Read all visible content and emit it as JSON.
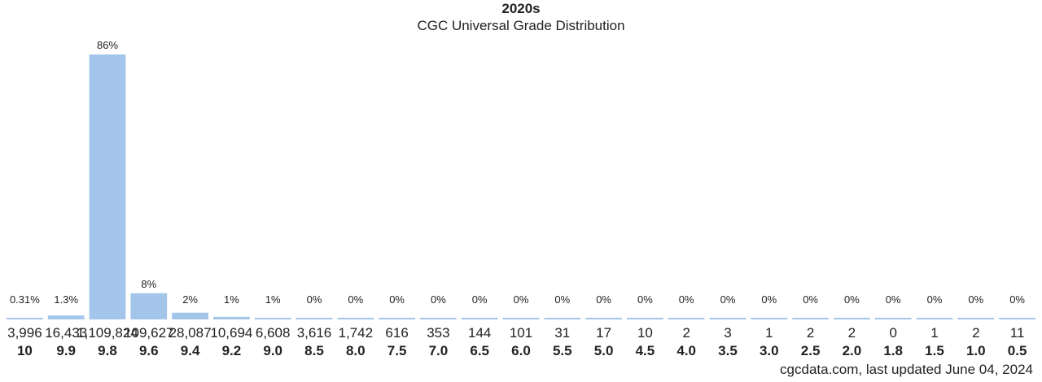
{
  "chart_data": {
    "type": "bar",
    "title": "2020s",
    "subtitle": "CGC Universal Grade Distribution",
    "categories": [
      "10",
      "9.9",
      "9.8",
      "9.6",
      "9.4",
      "9.2",
      "9.0",
      "8.5",
      "8.0",
      "7.5",
      "7.0",
      "6.5",
      "6.0",
      "5.5",
      "5.0",
      "4.5",
      "4.0",
      "3.5",
      "3.0",
      "2.5",
      "2.0",
      "1.8",
      "1.5",
      "1.0",
      "0.5"
    ],
    "values": [
      3996,
      16433,
      1109824,
      109627,
      28087,
      10694,
      6608,
      3616,
      1742,
      616,
      353,
      144,
      101,
      31,
      17,
      10,
      2,
      3,
      1,
      2,
      2,
      0,
      1,
      2,
      11
    ],
    "count_labels": [
      "3,996",
      "16,433",
      "1,109,824",
      "109,627",
      "28,087",
      "10,694",
      "6,608",
      "3,616",
      "1,742",
      "616",
      "353",
      "144",
      "101",
      "31",
      "17",
      "10",
      "2",
      "3",
      "1",
      "2",
      "2",
      "0",
      "1",
      "2",
      "11"
    ],
    "percent_labels": [
      "0.31%",
      "1.3%",
      "86%",
      "8%",
      "2%",
      "1%",
      "1%",
      "0%",
      "0%",
      "0%",
      "0%",
      "0%",
      "0%",
      "0%",
      "0%",
      "0%",
      "0%",
      "0%",
      "0%",
      "0%",
      "0%",
      "0%",
      "0%",
      "0%",
      "0%"
    ],
    "xlabel": "",
    "ylabel": "",
    "grid": false,
    "bar_color": "#a3c5e9"
  },
  "footer": "cgcdata.com, last updated June 04, 2024"
}
